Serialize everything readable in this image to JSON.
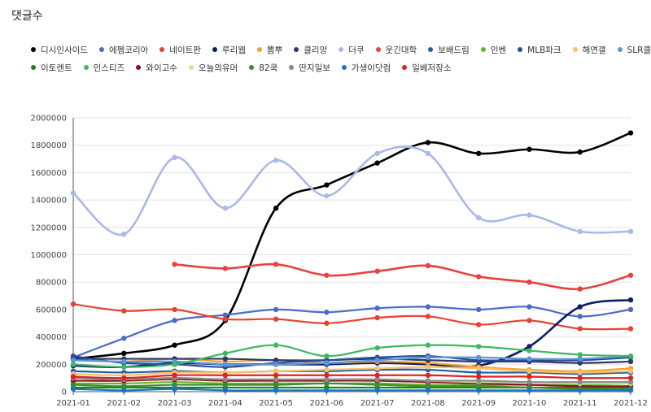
{
  "page_title": "댓글수",
  "chart_data": {
    "type": "line",
    "title": "댓글수",
    "xlabel": "",
    "ylabel": "",
    "ylim": [
      0,
      2000000
    ],
    "yticks": [
      "0",
      "200000",
      "400000",
      "600000",
      "800000",
      "1000000",
      "1200000",
      "1400000",
      "1600000",
      "1800000",
      "2000000"
    ],
    "categories": [
      "2021-01",
      "2021-02",
      "2021-03",
      "2021-04",
      "2021-05",
      "2021-06",
      "2021-07",
      "2021-08",
      "2021-09",
      "2021-10",
      "2021-11",
      "2021-12"
    ],
    "grid": "horizontal",
    "legend_position": "top",
    "series": [
      {
        "name": "디시인사이드",
        "color": "#000000",
        "values": [
          240000,
          280000,
          340000,
          520000,
          1340000,
          1510000,
          1670000,
          1820000,
          1740000,
          1770000,
          1750000,
          1890000
        ]
      },
      {
        "name": "에펨코리아",
        "color": "#4a6cc7",
        "values": [
          250000,
          390000,
          520000,
          560000,
          600000,
          580000,
          610000,
          620000,
          600000,
          620000,
          550000,
          600000
        ]
      },
      {
        "name": "네이트판",
        "color": "#e8412f",
        "values": [
          640000,
          590000,
          600000,
          530000,
          530000,
          500000,
          540000,
          550000,
          490000,
          520000,
          460000,
          460000
        ]
      },
      {
        "name": "루리웹",
        "color": "#0b1f66",
        "values": [
          190000,
          180000,
          210000,
          200000,
          200000,
          200000,
          210000,
          200000,
          190000,
          330000,
          620000,
          670000
        ]
      },
      {
        "name": "뽐뿌",
        "color": "#f5a031",
        "values": [
          230000,
          220000,
          240000,
          220000,
          230000,
          210000,
          220000,
          210000,
          180000,
          160000,
          150000,
          170000
        ]
      },
      {
        "name": "클리앙",
        "color": "#2d3a66",
        "values": [
          240000,
          240000,
          240000,
          240000,
          230000,
          230000,
          240000,
          230000,
          220000,
          220000,
          210000,
          220000
        ]
      },
      {
        "name": "더쿠",
        "color": "#aab8ea",
        "values": [
          1450000,
          1150000,
          1710000,
          1340000,
          1690000,
          1430000,
          1740000,
          1740000,
          1270000,
          1290000,
          1170000,
          1170000
        ]
      },
      {
        "name": "웃긴대학",
        "color": "#e8413f",
        "values": [
          null,
          null,
          930000,
          900000,
          930000,
          850000,
          880000,
          920000,
          840000,
          800000,
          750000,
          850000
        ]
      },
      {
        "name": "보배드림",
        "color": "#1f5fa8",
        "values": [
          150000,
          140000,
          150000,
          140000,
          150000,
          150000,
          160000,
          160000,
          140000,
          140000,
          130000,
          140000
        ]
      },
      {
        "name": "인벤",
        "color": "#69b52a",
        "values": [
          60000,
          60000,
          70000,
          60000,
          60000,
          60000,
          60000,
          50000,
          50000,
          50000,
          50000,
          60000
        ]
      },
      {
        "name": "MLB파크",
        "color": "#2a4a9c",
        "values": [
          260000,
          210000,
          200000,
          180000,
          210000,
          230000,
          250000,
          260000,
          230000,
          230000,
          230000,
          250000
        ]
      },
      {
        "name": "해연갤",
        "color": "#f9c166",
        "values": [
          130000,
          120000,
          140000,
          140000,
          150000,
          160000,
          170000,
          180000,
          170000,
          150000,
          140000,
          150000
        ]
      },
      {
        "name": "SLR클럽",
        "color": "#5b97d6",
        "values": [
          230000,
          220000,
          220000,
          200000,
          200000,
          210000,
          230000,
          250000,
          250000,
          240000,
          240000,
          260000
        ]
      },
      {
        "name": "이토렌트",
        "color": "#0e8a12",
        "values": [
          30000,
          30000,
          30000,
          30000,
          30000,
          30000,
          30000,
          30000,
          30000,
          30000,
          30000,
          30000
        ]
      },
      {
        "name": "인스티즈",
        "color": "#3fb862",
        "values": [
          200000,
          180000,
          200000,
          280000,
          340000,
          260000,
          320000,
          340000,
          330000,
          300000,
          270000,
          260000
        ]
      },
      {
        "name": "와이고수",
        "color": "#8b0f1f",
        "values": [
          80000,
          80000,
          90000,
          80000,
          80000,
          80000,
          80000,
          70000,
          60000,
          50000,
          40000,
          40000
        ]
      },
      {
        "name": "오늘의유머",
        "color": "#c8ea9a",
        "values": [
          100000,
          90000,
          100000,
          90000,
          90000,
          90000,
          90000,
          80000,
          70000,
          70000,
          60000,
          60000
        ]
      },
      {
        "name": "82쿡",
        "color": "#3d8c33",
        "values": [
          50000,
          40000,
          50000,
          50000,
          50000,
          60000,
          50000,
          40000,
          40000,
          30000,
          20000,
          20000
        ]
      },
      {
        "name": "딴지일보",
        "color": "#8a8a8a",
        "values": [
          100000,
          90000,
          100000,
          90000,
          90000,
          90000,
          90000,
          80000,
          80000,
          70000,
          70000,
          70000
        ]
      },
      {
        "name": "가생이닷컴",
        "color": "#1a74c4",
        "values": [
          20000,
          10000,
          20000,
          10000,
          10000,
          10000,
          10000,
          10000,
          10000,
          10000,
          10000,
          10000
        ]
      },
      {
        "name": "일베저장소",
        "color": "#e02222",
        "values": [
          110000,
          100000,
          120000,
          120000,
          120000,
          120000,
          120000,
          120000,
          110000,
          110000,
          100000,
          100000
        ]
      }
    ]
  }
}
